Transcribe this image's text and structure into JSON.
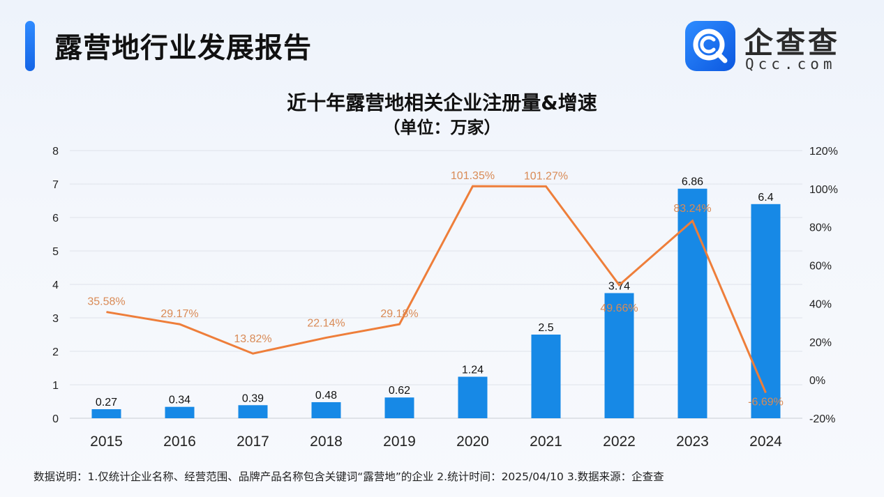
{
  "header": {
    "title": "露营地行业发展报告"
  },
  "logo": {
    "name_cn": "企查查",
    "name_en": "Qcc.com",
    "icon": "qcc-magnifier-logo-icon"
  },
  "colors": {
    "bar": "#1789e6",
    "line": "#ee7e3a",
    "accent": "#1f78f0",
    "line_label": "#d98a55"
  },
  "chart_data": {
    "type": "bar+line",
    "title": "近十年露营地相关企业注册量&增速",
    "subtitle": "（单位：万家）",
    "categories": [
      "2015",
      "2016",
      "2017",
      "2018",
      "2019",
      "2020",
      "2021",
      "2022",
      "2023",
      "2024"
    ],
    "series": [
      {
        "type": "bar",
        "axis": "left",
        "values": [
          0.27,
          0.34,
          0.39,
          0.48,
          0.62,
          1.24,
          2.5,
          3.74,
          6.86,
          6.4
        ],
        "labels": [
          "0.27",
          "0.34",
          "0.39",
          "0.48",
          "0.62",
          "1.24",
          "2.5",
          "3.74",
          "6.86",
          "6.4"
        ]
      },
      {
        "type": "line",
        "axis": "right",
        "values": [
          35.58,
          29.17,
          13.82,
          22.14,
          29.18,
          101.35,
          101.27,
          49.66,
          83.24,
          -6.69
        ],
        "labels": [
          "35.58%",
          "29.17%",
          "13.82%",
          "22.14%",
          "29.18%",
          "101.35%",
          "101.27%",
          "49.66%",
          "83.24%",
          "-6.69%"
        ]
      }
    ],
    "left_axis": {
      "ylim": [
        0,
        8
      ],
      "ticks": [
        "0",
        "1",
        "2",
        "3",
        "4",
        "5",
        "6",
        "7",
        "8"
      ]
    },
    "right_axis": {
      "ylim": [
        -20,
        120
      ],
      "ticks": [
        "-20%",
        "0%",
        "20%",
        "40%",
        "60%",
        "80%",
        "100%",
        "120%"
      ]
    },
    "grid": true,
    "legend": "none"
  },
  "footnote": "数据说明：1.仅统计企业名称、经营范围、品牌产品名称包含关键词“露营地”的企业   2.统计时间：2025/04/10    3.数据来源：企查查"
}
